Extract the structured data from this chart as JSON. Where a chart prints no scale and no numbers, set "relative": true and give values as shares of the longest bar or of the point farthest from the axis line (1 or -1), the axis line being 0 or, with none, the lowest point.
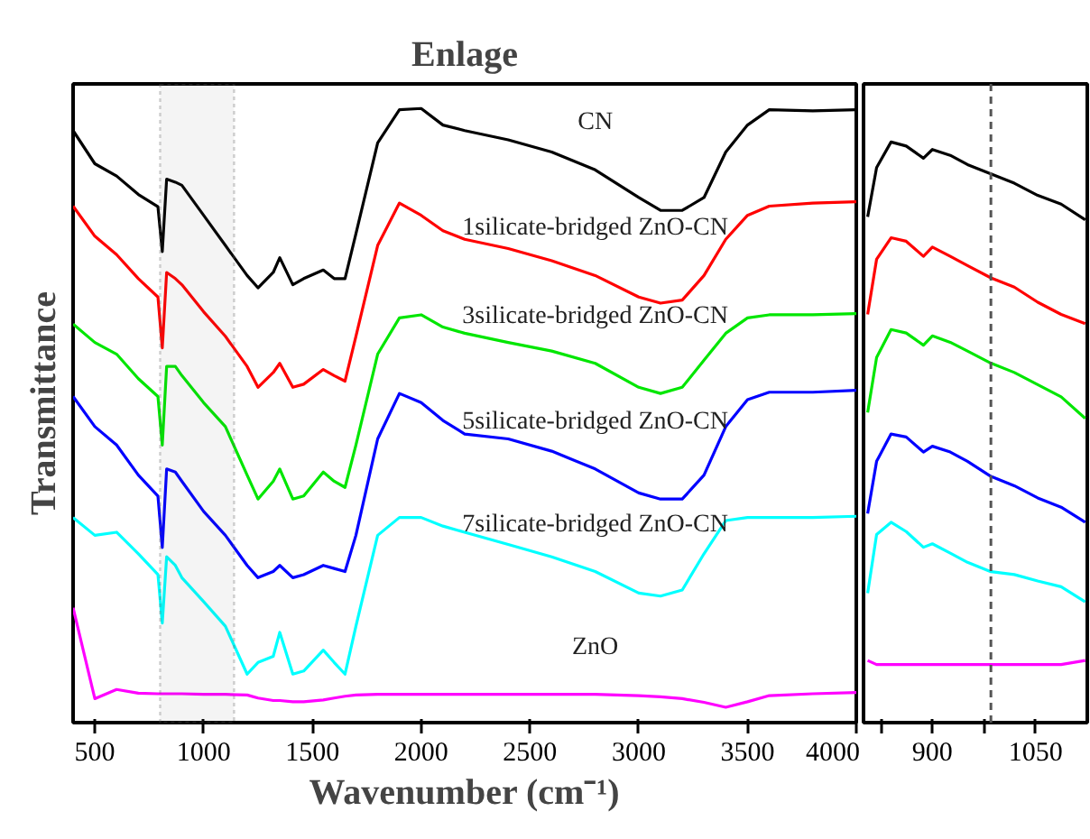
{
  "chart_data": [
    {
      "type": "line",
      "title": "Enlage",
      "xlabel": "Wavenumber (cm⁻¹)",
      "ylabel": "Transmittance",
      "relative": true,
      "tick_labels": "x",
      "grid": false,
      "xlim": [
        400,
        4000
      ],
      "xticks": [
        500,
        1000,
        1500,
        2000,
        2500,
        3000,
        3500,
        4000
      ],
      "x": [
        400,
        500,
        600,
        700,
        790,
        810,
        830,
        870,
        900,
        1000,
        1100,
        1200,
        1250,
        1320,
        1350,
        1410,
        1460,
        1550,
        1600,
        1650,
        1700,
        1800,
        1900,
        2000,
        2100,
        2200,
        2400,
        2600,
        2800,
        3000,
        3100,
        3200,
        3300,
        3400,
        3500,
        3600,
        3800,
        4000
      ],
      "series": [
        {
          "name": "CN",
          "color": "#000000",
          "values": [
            0.964,
            0.91,
            0.89,
            0.86,
            0.84,
            0.767,
            0.885,
            0.88,
            0.875,
            0.826,
            0.777,
            0.728,
            0.708,
            0.733,
            0.757,
            0.713,
            0.723,
            0.737,
            0.723,
            0.723,
            0.796,
            0.944,
            0.998,
            1,
            0.973,
            0.964,
            0.949,
            0.929,
            0.9,
            0.855,
            0.834,
            0.834,
            0.855,
            0.929,
            0.973,
            0.998,
            0.996,
            0.998
          ]
        },
        {
          "name": "1silicate-bridged ZnO-CN",
          "color": "#ff0000",
          "values": [
            0.841,
            0.792,
            0.762,
            0.723,
            0.693,
            0.61,
            0.733,
            0.723,
            0.713,
            0.669,
            0.629,
            0.58,
            0.546,
            0.57,
            0.585,
            0.546,
            0.551,
            0.575,
            0.565,
            0.556,
            0.629,
            0.777,
            0.846,
            0.826,
            0.801,
            0.787,
            0.772,
            0.752,
            0.728,
            0.693,
            0.683,
            0.688,
            0.728,
            0.787,
            0.826,
            0.841,
            0.846,
            0.848
          ]
        },
        {
          "name": "3silicate-bridged ZnO-CN",
          "color": "#00e600",
          "values": [
            0.649,
            0.619,
            0.6,
            0.56,
            0.531,
            0.452,
            0.58,
            0.58,
            0.565,
            0.521,
            0.482,
            0.403,
            0.364,
            0.393,
            0.413,
            0.364,
            0.369,
            0.408,
            0.393,
            0.383,
            0.452,
            0.6,
            0.659,
            0.664,
            0.644,
            0.634,
            0.619,
            0.605,
            0.585,
            0.546,
            0.536,
            0.546,
            0.59,
            0.634,
            0.659,
            0.664,
            0.664,
            0.666
          ]
        },
        {
          "name": "5silicate-bridged ZnO-CN",
          "color": "#0000ff",
          "values": [
            0.531,
            0.482,
            0.452,
            0.403,
            0.369,
            0.285,
            0.413,
            0.408,
            0.393,
            0.344,
            0.305,
            0.256,
            0.236,
            0.246,
            0.256,
            0.236,
            0.241,
            0.256,
            0.251,
            0.246,
            0.305,
            0.462,
            0.536,
            0.521,
            0.492,
            0.47,
            0.462,
            0.442,
            0.413,
            0.374,
            0.364,
            0.364,
            0.403,
            0.482,
            0.526,
            0.538,
            0.538,
            0.541
          ]
        },
        {
          "name": "7silicate-bridged ZnO-CN",
          "color": "#00ffff",
          "values": [
            0.334,
            0.305,
            0.31,
            0.275,
            0.241,
            0.162,
            0.27,
            0.256,
            0.236,
            0.197,
            0.157,
            0.079,
            0.098,
            0.108,
            0.147,
            0.079,
            0.084,
            0.118,
            0.098,
            0.079,
            0.157,
            0.305,
            0.334,
            0.334,
            0.32,
            0.31,
            0.29,
            0.27,
            0.246,
            0.211,
            0.206,
            0.216,
            0.275,
            0.329,
            0.334,
            0.334,
            0.334,
            0.336
          ]
        },
        {
          "name": "ZnO",
          "color": "#ff00ff",
          "values": [
            0.187,
            0.039,
            0.054,
            0.048,
            0.047,
            0.047,
            0.047,
            0.047,
            0.047,
            0.046,
            0.046,
            0.045,
            0.04,
            0.036,
            0.036,
            0.034,
            0.034,
            0.037,
            0.04,
            0.043,
            0.045,
            0.046,
            0.046,
            0.046,
            0.046,
            0.046,
            0.046,
            0.046,
            0.046,
            0.044,
            0.042,
            0.039,
            0.033,
            0.025,
            0.034,
            0.044,
            0.047,
            0.049
          ]
        }
      ],
      "bands": [
        {
          "axis": "x",
          "from": 800,
          "to": 1140,
          "color": "#666666"
        }
      ]
    },
    {
      "type": "line",
      "relative": true,
      "tick_labels": "x",
      "grid": false,
      "xlim": [
        800,
        1125
      ],
      "xticks": [
        {
          "value": 825,
          "label": null
        },
        900,
        {
          "value": 975,
          "label": null
        },
        1050
      ],
      "x": [
        806,
        819,
        840,
        862,
        887,
        900,
        926,
        951,
        985,
        1019,
        1053,
        1087,
        1122
      ],
      "series": [
        {
          "color": "#000000",
          "values": [
            0.871,
            0.956,
            1,
            0.993,
            0.972,
            0.987,
            0.977,
            0.961,
            0.945,
            0.929,
            0.908,
            0.893,
            0.866
          ]
        },
        {
          "color": "#ff0000",
          "values": [
            0.703,
            0.798,
            0.835,
            0.829,
            0.803,
            0.819,
            0.803,
            0.787,
            0.766,
            0.75,
            0.724,
            0.703,
            0.687
          ]
        },
        {
          "color": "#00e600",
          "values": [
            0.534,
            0.629,
            0.677,
            0.671,
            0.65,
            0.666,
            0.655,
            0.64,
            0.619,
            0.603,
            0.582,
            0.561,
            0.524
          ]
        },
        {
          "color": "#0000ff",
          "values": [
            0.36,
            0.45,
            0.497,
            0.492,
            0.466,
            0.476,
            0.466,
            0.45,
            0.424,
            0.408,
            0.387,
            0.371,
            0.345
          ]
        },
        {
          "color": "#00ffff",
          "values": [
            0.223,
            0.324,
            0.345,
            0.329,
            0.302,
            0.308,
            0.292,
            0.276,
            0.26,
            0.255,
            0.244,
            0.234,
            0.208
          ]
        },
        {
          "color": "#ff00ff",
          "values": [
            0.107,
            0.1,
            0.1,
            0.1,
            0.1,
            0.1,
            0.1,
            0.1,
            0.1,
            0.1,
            0.1,
            0.1,
            0.107
          ]
        }
      ],
      "ref_lines": [
        {
          "axis": "x",
          "value": 985,
          "line_style": "dashed",
          "color": "#555555"
        }
      ]
    }
  ]
}
